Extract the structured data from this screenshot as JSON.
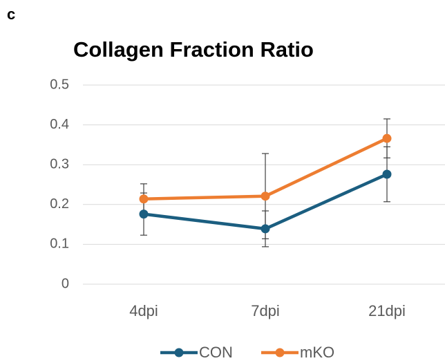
{
  "chart_data": {
    "type": "line",
    "panel_label": "c",
    "title": "Collagen Fraction Ratio",
    "categories": [
      "4dpi",
      "7dpi",
      "21dpi"
    ],
    "series": [
      {
        "name": "CON",
        "color": "#1b5e80",
        "values": [
          0.176,
          0.139,
          0.276
        ],
        "errors": [
          0.053,
          0.045,
          0.069
        ]
      },
      {
        "name": "mKO",
        "color": "#ed7d31",
        "values": [
          0.214,
          0.221,
          0.366
        ],
        "errors": [
          0.038,
          0.107,
          0.049
        ]
      }
    ],
    "ylim": [
      0,
      0.5
    ],
    "yticks": [
      0,
      0.1,
      0.2,
      0.3,
      0.4,
      0.5
    ],
    "grid": true,
    "legend": "bottom"
  }
}
